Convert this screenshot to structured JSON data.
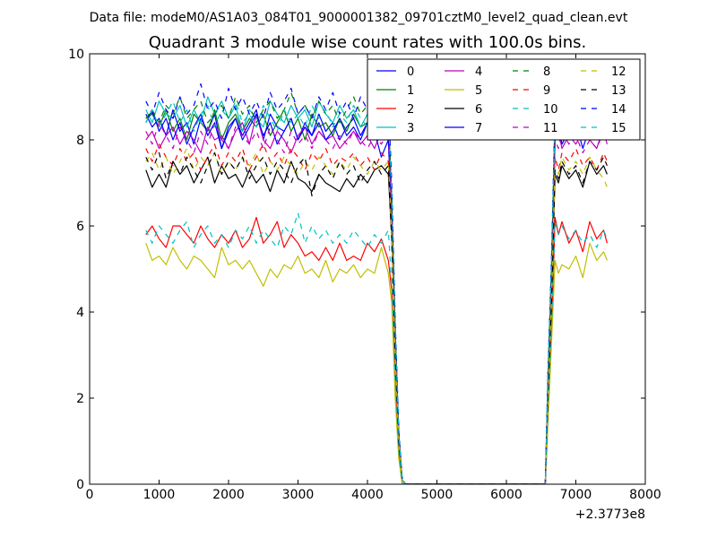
{
  "suptitle": "Data file: modeM0/AS1A03_084T01_9000001382_09701cztM0_level2_quad_clean.evt",
  "chart_data": {
    "type": "line",
    "title": "Quadrant 3 module wise count rates with 100.0s bins.",
    "xlabel": "",
    "ylabel": "",
    "x_offset_label": "+2.3773e8",
    "xlim": [
      0,
      8000
    ],
    "ylim": [
      0,
      10
    ],
    "x_ticks": [
      "0",
      "1000",
      "2000",
      "3000",
      "4000",
      "5000",
      "6000",
      "7000",
      "8000"
    ],
    "y_ticks": [
      "0",
      "2",
      "4",
      "6",
      "8",
      "10"
    ],
    "grid": false,
    "legend_position": "top-right",
    "legend_columns": 4,
    "x": [
      810,
      900,
      1000,
      1100,
      1200,
      1300,
      1400,
      1500,
      1600,
      1700,
      1800,
      1900,
      2000,
      2100,
      2200,
      2300,
      2400,
      2500,
      2600,
      2700,
      2800,
      2900,
      3000,
      3100,
      3200,
      3300,
      3400,
      3500,
      3600,
      3700,
      3800,
      3900,
      4000,
      4100,
      4200,
      4300,
      4350,
      4400,
      4450,
      4500,
      4550,
      6560,
      6600,
      6650,
      6700,
      6750,
      6800,
      6900,
      7000,
      7100,
      7200,
      7300,
      7400,
      7450
    ],
    "series": [
      {
        "name": "0",
        "color": "#0000ff",
        "dash": "solid",
        "values": [
          8.6,
          8.3,
          8.5,
          8.1,
          8.7,
          8.2,
          8.4,
          7.9,
          8.5,
          8.2,
          8.6,
          7.8,
          8.3,
          8.5,
          8.1,
          8.4,
          8.7,
          8.0,
          8.6,
          8.3,
          8.2,
          8.5,
          8.0,
          8.4,
          8.1,
          8.6,
          8.2,
          8.4,
          8.0,
          8.3,
          8.5,
          8.1,
          8.4,
          8.2,
          8.6,
          8.3,
          6.5,
          3.5,
          1.2,
          0.1,
          0.0,
          0.0,
          2.5,
          5.0,
          8.4,
          8.1,
          8.6,
          8.2,
          8.5,
          8.0,
          8.4,
          8.1,
          8.6,
          8.3
        ]
      },
      {
        "name": "1",
        "color": "#008000",
        "dash": "solid",
        "values": [
          8.5,
          8.6,
          8.3,
          8.7,
          8.2,
          8.5,
          8.0,
          8.6,
          8.4,
          8.2,
          8.7,
          8.0,
          8.4,
          8.6,
          8.2,
          8.5,
          8.3,
          8.6,
          8.1,
          8.4,
          8.7,
          8.2,
          8.5,
          8.0,
          8.6,
          8.3,
          8.4,
          8.1,
          8.5,
          8.2,
          8.6,
          8.3,
          8.4,
          8.0,
          8.5,
          8.2,
          6.3,
          3.4,
          1.1,
          0.1,
          0.0,
          0.0,
          2.4,
          4.9,
          8.2,
          8.5,
          8.0,
          8.6,
          8.3,
          8.4,
          8.1,
          8.5,
          8.2,
          8.4
        ]
      },
      {
        "name": "2",
        "color": "#ff0000",
        "dash": "solid",
        "values": [
          5.8,
          6.0,
          5.7,
          5.5,
          6.0,
          6.0,
          5.8,
          5.6,
          6.0,
          5.7,
          5.5,
          5.8,
          5.6,
          5.9,
          5.5,
          5.7,
          6.2,
          5.6,
          5.8,
          6.1,
          5.5,
          5.8,
          5.6,
          5.3,
          5.4,
          5.2,
          5.5,
          5.2,
          5.6,
          5.2,
          5.3,
          5.2,
          5.6,
          5.4,
          5.7,
          5.2,
          4.5,
          2.2,
          0.7,
          0.0,
          0.0,
          0.0,
          1.6,
          3.5,
          6.2,
          5.8,
          6.1,
          5.6,
          5.9,
          5.4,
          6.1,
          5.7,
          5.9,
          5.6
        ]
      },
      {
        "name": "3",
        "color": "#00bfbf",
        "dash": "solid",
        "values": [
          8.7,
          8.4,
          8.9,
          8.6,
          8.5,
          8.8,
          8.3,
          8.7,
          8.4,
          9.0,
          8.6,
          8.9,
          8.5,
          8.8,
          8.2,
          8.7,
          8.5,
          8.3,
          8.9,
          8.6,
          8.4,
          8.8,
          8.5,
          8.7,
          8.3,
          8.9,
          8.6,
          8.4,
          8.8,
          8.5,
          8.7,
          8.3,
          8.6,
          8.4,
          8.9,
          8.5,
          6.6,
          3.6,
          1.2,
          0.1,
          0.0,
          0.0,
          2.6,
          5.1,
          8.7,
          8.4,
          8.8,
          8.3,
          8.6,
          8.2,
          8.5,
          8.3,
          8.7,
          8.4
        ]
      },
      {
        "name": "4",
        "color": "#bf00bf",
        "dash": "solid",
        "values": [
          8.0,
          8.2,
          7.8,
          8.1,
          8.3,
          7.9,
          8.2,
          8.0,
          7.7,
          8.3,
          8.0,
          8.1,
          7.8,
          8.2,
          8.4,
          7.9,
          8.6,
          8.0,
          7.8,
          8.2,
          8.0,
          7.7,
          8.1,
          8.3,
          7.9,
          8.2,
          8.0,
          8.1,
          7.8,
          8.0,
          8.2,
          7.9,
          8.1,
          7.8,
          8.2,
          8.0,
          6.2,
          3.3,
          1.1,
          0.1,
          0.0,
          0.0,
          2.3,
          4.7,
          8.0,
          8.2,
          7.8,
          8.1,
          7.9,
          8.2,
          8.0,
          7.8,
          8.3,
          8.0
        ]
      },
      {
        "name": "5",
        "color": "#bfbf00",
        "dash": "solid",
        "values": [
          5.6,
          5.2,
          5.3,
          5.1,
          5.5,
          5.2,
          5.0,
          5.3,
          5.2,
          5.0,
          4.8,
          5.5,
          5.1,
          5.2,
          5.0,
          5.2,
          4.9,
          4.6,
          5.0,
          4.8,
          5.1,
          5.0,
          5.3,
          4.9,
          5.0,
          4.8,
          5.2,
          4.7,
          5.0,
          4.9,
          5.1,
          4.8,
          5.0,
          4.9,
          5.5,
          4.9,
          4.2,
          2.0,
          0.6,
          0.0,
          0.0,
          0.0,
          1.5,
          3.3,
          5.2,
          4.9,
          5.1,
          5.0,
          5.3,
          4.8,
          5.6,
          5.2,
          5.4,
          5.2
        ]
      },
      {
        "name": "6",
        "color": "#000000",
        "dash": "solid",
        "values": [
          7.3,
          6.9,
          7.2,
          6.9,
          7.5,
          7.2,
          7.4,
          7.0,
          7.3,
          7.6,
          7.0,
          7.4,
          7.1,
          7.2,
          6.9,
          7.3,
          7.0,
          7.2,
          6.8,
          7.3,
          7.0,
          7.5,
          7.1,
          7.0,
          6.8,
          7.2,
          7.0,
          6.9,
          6.8,
          7.1,
          6.9,
          7.2,
          7.0,
          7.3,
          7.4,
          7.2,
          5.7,
          3.0,
          1.0,
          0.1,
          0.0,
          0.0,
          2.1,
          4.3,
          7.2,
          7.0,
          7.4,
          7.1,
          7.3,
          6.9,
          7.5,
          7.2,
          7.4,
          7.2
        ]
      },
      {
        "name": "7",
        "color": "#0000ff",
        "dash": "solid",
        "values": [
          8.4,
          8.7,
          8.2,
          8.5,
          8.0,
          8.4,
          7.9,
          8.3,
          8.6,
          8.1,
          8.4,
          7.8,
          8.2,
          8.5,
          8.0,
          8.3,
          8.6,
          8.1,
          8.4,
          7.9,
          8.2,
          8.5,
          8.0,
          8.3,
          8.1,
          8.4,
          8.0,
          8.2,
          8.5,
          8.1,
          8.3,
          8.0,
          8.4,
          8.2,
          7.6,
          8.0,
          6.1,
          3.2,
          1.0,
          0.1,
          0.0,
          0.0,
          2.4,
          4.8,
          8.1,
          8.4,
          7.9,
          8.2,
          8.4,
          7.8,
          8.3,
          8.1,
          8.5,
          8.2
        ]
      },
      {
        "name": "8",
        "color": "#008000",
        "dash": "dashed",
        "values": [
          8.5,
          8.7,
          8.4,
          8.8,
          8.6,
          9.0,
          8.5,
          8.7,
          8.9,
          8.4,
          8.6,
          8.8,
          8.5,
          9.0,
          8.6,
          8.8,
          8.4,
          8.7,
          8.9,
          8.5,
          8.7,
          9.1,
          8.6,
          8.8,
          8.5,
          8.9,
          8.6,
          8.8,
          8.4,
          8.7,
          9.0,
          8.6,
          8.8,
          8.5,
          8.9,
          8.6,
          6.7,
          3.6,
          1.2,
          0.1,
          0.0,
          0.0,
          2.6,
          5.1,
          8.6,
          8.9,
          8.5,
          8.7,
          8.4,
          8.8,
          8.5,
          8.7,
          8.3,
          8.6
        ]
      },
      {
        "name": "9",
        "color": "#ff0000",
        "dash": "dashed",
        "values": [
          7.8,
          7.5,
          7.9,
          7.6,
          7.4,
          7.8,
          7.5,
          7.7,
          7.3,
          7.6,
          7.9,
          7.4,
          7.7,
          7.5,
          7.8,
          7.3,
          7.6,
          7.9,
          7.5,
          7.7,
          7.4,
          7.8,
          7.6,
          7.3,
          7.7,
          7.5,
          7.8,
          7.4,
          7.6,
          7.5,
          7.7,
          7.4,
          7.6,
          7.3,
          7.7,
          7.5,
          5.8,
          3.1,
          1.0,
          0.1,
          0.0,
          0.0,
          2.2,
          4.5,
          7.6,
          7.3,
          7.7,
          7.5,
          7.8,
          7.4,
          7.6,
          7.3,
          7.7,
          7.5
        ]
      },
      {
        "name": "10",
        "color": "#00bfbf",
        "dash": "dashed",
        "values": [
          5.9,
          5.6,
          6.0,
          5.8,
          5.6,
          5.9,
          6.1,
          5.5,
          5.8,
          6.0,
          5.6,
          5.8,
          5.5,
          5.9,
          5.7,
          6.0,
          5.6,
          5.9,
          5.7,
          5.5,
          6.0,
          5.8,
          6.3,
          5.6,
          6.0,
          5.7,
          5.9,
          5.6,
          5.8,
          5.6,
          5.9,
          5.7,
          5.5,
          5.8,
          5.6,
          5.9,
          4.6,
          2.4,
          0.8,
          0.0,
          0.0,
          0.0,
          1.8,
          3.7,
          6.1,
          5.8,
          6.0,
          5.7,
          5.9,
          5.6,
          5.8,
          5.5,
          5.9,
          5.7
        ]
      },
      {
        "name": "11",
        "color": "#bf00bf",
        "dash": "dashed",
        "values": [
          8.2,
          7.9,
          8.4,
          8.1,
          7.8,
          8.3,
          8.0,
          7.7,
          8.2,
          7.9,
          8.4,
          8.0,
          7.8,
          8.3,
          8.1,
          7.9,
          8.2,
          7.8,
          8.3,
          8.0,
          7.7,
          8.2,
          7.9,
          8.1,
          7.8,
          8.2,
          8.0,
          7.8,
          8.1,
          7.9,
          8.2,
          8.0,
          7.8,
          8.1,
          7.9,
          8.2,
          6.3,
          3.3,
          1.1,
          0.1,
          0.0,
          0.0,
          2.3,
          4.7,
          8.0,
          7.8,
          8.2,
          7.9,
          8.1,
          7.7,
          8.0,
          7.8,
          8.2,
          7.9
        ]
      },
      {
        "name": "12",
        "color": "#bfbf00",
        "dash": "dashed",
        "values": [
          7.5,
          7.7,
          7.3,
          7.6,
          7.2,
          7.5,
          7.8,
          7.3,
          7.6,
          7.4,
          7.7,
          7.2,
          7.5,
          7.3,
          7.6,
          7.4,
          7.7,
          7.2,
          7.5,
          7.3,
          7.6,
          7.4,
          7.2,
          7.5,
          7.3,
          7.6,
          7.4,
          7.2,
          7.5,
          7.3,
          7.6,
          7.4,
          7.2,
          7.5,
          7.3,
          7.5,
          5.8,
          3.0,
          1.0,
          0.1,
          0.0,
          0.0,
          2.1,
          4.4,
          7.4,
          7.2,
          7.6,
          7.3,
          7.5,
          7.2,
          7.6,
          7.3,
          7.1,
          6.9
        ]
      },
      {
        "name": "13",
        "color": "#000000",
        "dash": "dashed",
        "values": [
          7.6,
          7.3,
          7.7,
          7.1,
          7.5,
          7.2,
          7.6,
          7.3,
          7.0,
          7.4,
          7.7,
          7.2,
          7.5,
          7.3,
          7.6,
          7.1,
          7.4,
          7.6,
          7.2,
          7.5,
          7.3,
          7.0,
          7.4,
          7.6,
          6.7,
          7.2,
          7.4,
          7.1,
          7.5,
          7.2,
          7.4,
          7.0,
          7.3,
          7.5,
          7.2,
          7.4,
          5.7,
          3.0,
          1.0,
          0.1,
          0.0,
          0.0,
          2.1,
          4.3,
          7.3,
          7.1,
          7.5,
          7.2,
          7.4,
          7.0,
          7.5,
          7.3,
          7.6,
          7.4
        ]
      },
      {
        "name": "14",
        "color": "#0000ff",
        "dash": "dashed",
        "values": [
          8.9,
          8.6,
          9.1,
          8.7,
          8.5,
          9.0,
          8.6,
          8.8,
          9.3,
          8.7,
          8.9,
          8.5,
          9.2,
          8.7,
          9.0,
          8.6,
          8.9,
          8.5,
          9.1,
          8.7,
          8.9,
          9.2,
          8.6,
          8.8,
          8.5,
          9.0,
          8.7,
          9.1,
          8.6,
          8.9,
          8.5,
          9.0,
          8.7,
          8.9,
          8.6,
          9.0,
          7.0,
          3.8,
          1.3,
          0.1,
          0.0,
          0.0,
          2.7,
          5.3,
          8.8,
          8.5,
          9.0,
          8.6,
          8.9,
          8.4,
          8.8,
          8.5,
          8.9,
          8.6
        ]
      },
      {
        "name": "15",
        "color": "#00bfbf",
        "dash": "dashed",
        "values": [
          8.4,
          8.7,
          8.3,
          8.6,
          8.9,
          8.4,
          8.7,
          8.2,
          8.6,
          8.8,
          8.3,
          8.7,
          8.5,
          8.9,
          8.4,
          8.6,
          8.3,
          8.8,
          8.5,
          8.2,
          8.7,
          8.4,
          8.6,
          8.3,
          8.8,
          8.5,
          8.7,
          8.3,
          8.6,
          8.4,
          8.8,
          8.5,
          8.3,
          8.7,
          8.4,
          8.6,
          6.7,
          3.6,
          1.2,
          0.1,
          0.0,
          0.0,
          2.6,
          5.1,
          8.5,
          8.8,
          8.4,
          8.7,
          8.3,
          8.6,
          8.2,
          8.5,
          8.8,
          8.4
        ]
      }
    ]
  }
}
